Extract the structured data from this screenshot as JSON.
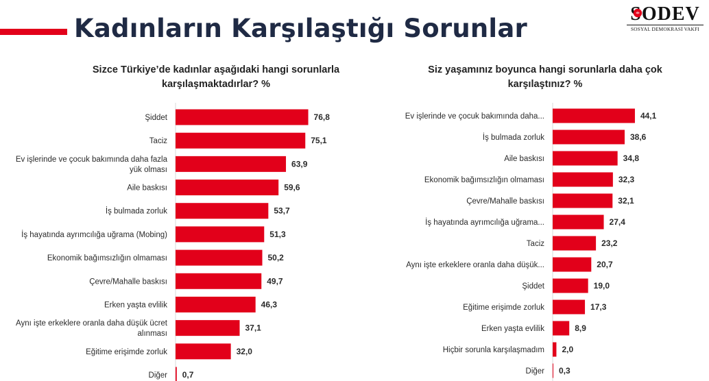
{
  "page": {
    "title": "Kadınların Karşılaştığı Sorunlar",
    "accent_color": "#e2001a",
    "title_color": "#1f2a44"
  },
  "logo": {
    "wordmark": "SODEV",
    "subtitle": "SOSYAL DEMOKRASİ VAKFI"
  },
  "chart_data": [
    {
      "type": "bar",
      "orientation": "horizontal",
      "title": "Sizce Türkiye’de kadınlar aşağıdaki hangi sorunlarla karşılaşmaktadırlar? %",
      "categories": [
        [
          "Şiddet"
        ],
        [
          "Taciz"
        ],
        [
          "Ev işlerinde ve çocuk bakımında daha fazla",
          "yük olması"
        ],
        [
          "Aile baskısı"
        ],
        [
          "İş bulmada zorluk"
        ],
        [
          "İş hayatında ayrımcılığa uğrama (Mobing)"
        ],
        [
          "Ekonomik bağımsızlığın olmaması"
        ],
        [
          "Çevre/Mahalle baskısı"
        ],
        [
          "Erken yaşta evlilik"
        ],
        [
          "Aynı işte erkeklere oranla daha düşük ücret",
          "alınması"
        ],
        [
          "Eğitime erişimde zorluk"
        ],
        [
          "Diğer"
        ]
      ],
      "values": [
        76.8,
        75.1,
        63.9,
        59.6,
        53.7,
        51.3,
        50.2,
        49.7,
        46.3,
        37.1,
        32.0,
        0.7
      ],
      "value_labels": [
        "76,8",
        "75,1",
        "63,9",
        "59,6",
        "53,7",
        "51,3",
        "50,2",
        "49,7",
        "46,3",
        "37,1",
        "32,0",
        "0,7"
      ],
      "color": "#e2001a",
      "xlim": [
        0,
        100
      ],
      "grid": false,
      "legend": "none"
    },
    {
      "type": "bar",
      "orientation": "horizontal",
      "title": "Siz yaşamınız boyunca hangi sorunlarla daha çok karşılaştınız? %",
      "categories": [
        [
          "Ev işlerinde ve çocuk bakımında daha..."
        ],
        [
          "İş bulmada zorluk"
        ],
        [
          "Aile baskısı"
        ],
        [
          "Ekonomik bağımsızlığın olmaması"
        ],
        [
          "Çevre/Mahalle baskısı"
        ],
        [
          "İş hayatında ayrımcılığa uğrama..."
        ],
        [
          "Taciz"
        ],
        [
          "Aynı işte erkeklere oranla daha düşük..."
        ],
        [
          "Şiddet"
        ],
        [
          "Eğitime erişimde zorluk"
        ],
        [
          "Erken yaşta evlilik"
        ],
        [
          "Hiçbir sorunla karşılaşmadım"
        ],
        [
          "Diğer"
        ]
      ],
      "values": [
        44.1,
        38.6,
        34.8,
        32.3,
        32.1,
        27.4,
        23.2,
        20.7,
        19.0,
        17.3,
        8.9,
        2.0,
        0.3
      ],
      "value_labels": [
        "44,1",
        "38,6",
        "34,8",
        "32,3",
        "32,1",
        "27,4",
        "23,2",
        "20,7",
        "19,0",
        "17,3",
        "8,9",
        "2,0",
        "0,3"
      ],
      "color": "#e2001a",
      "xlim": [
        0,
        45
      ],
      "grid": false,
      "legend": "none"
    }
  ]
}
